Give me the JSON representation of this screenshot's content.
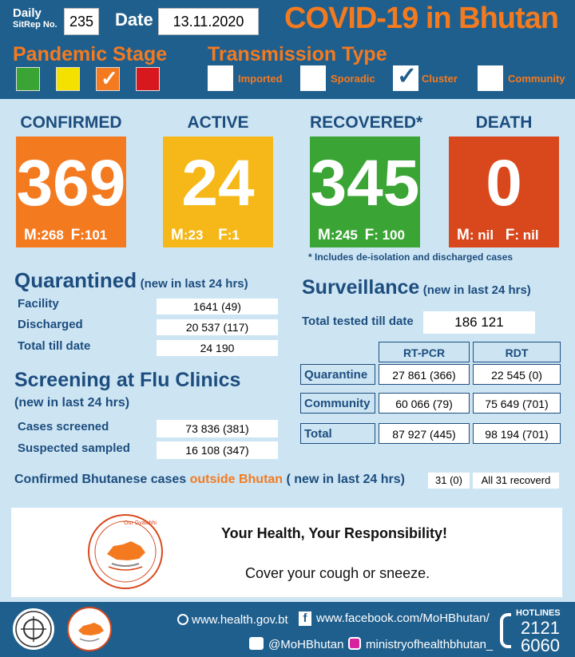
{
  "header": {
    "sitrep_label_line1": "Daily",
    "sitrep_label_line2": "SitRep No.",
    "sitrep_no": "235",
    "date_label": "Date",
    "date_value": "13.11.2020",
    "title": "COVID-19 in Bhutan",
    "pandemic_stage_label": "Pandemic Stage",
    "transmission_type_label": "Transmission Type",
    "stage_colors": [
      "#3aa535",
      "#f5e100",
      "#f47a20",
      "#d7191f"
    ],
    "stage_checked_index": 2,
    "transmission_types": [
      {
        "label": "Imported",
        "checked": false
      },
      {
        "label": "Sporadic",
        "checked": false
      },
      {
        "label": "Cluster",
        "checked": true
      },
      {
        "label": "Community",
        "checked": false
      }
    ],
    "check_mark": "✓"
  },
  "cards": [
    {
      "label": "CONFIRMED",
      "value": "369",
      "m_label": "M",
      "m_value": ":268",
      "f_label": "F",
      "f_value": ":101",
      "color": "#f47a20"
    },
    {
      "label": "ACTIVE",
      "value": "24",
      "m_label": "M",
      "m_value": ":23",
      "f_label": "F",
      "f_value": ":1",
      "color": "#f6b818"
    },
    {
      "label": "RECOVERED*",
      "value": "345",
      "m_label": "M",
      "m_value": ":245",
      "f_label": "F",
      "f_value": ": 100",
      "color": "#3aa535"
    },
    {
      "label": "DEATH",
      "value": "0",
      "m_label": "M",
      "m_value": ": nil",
      "f_label": "F",
      "f_value": ": nil",
      "color": "#d9481c"
    }
  ],
  "recovered_note": "* Includes de-isolation and discharged cases",
  "quarantined": {
    "title": "Quarantined",
    "subtitle": "(new in last 24 hrs)",
    "rows": [
      {
        "label": "Facility",
        "value": "1641 (49)"
      },
      {
        "label": "Discharged",
        "value": "20 537 (117)"
      },
      {
        "label": "Total till date",
        "value": "24 190"
      }
    ]
  },
  "screening": {
    "title": "Screening at Flu Clinics",
    "subtitle": "(new in last 24 hrs)",
    "rows": [
      {
        "label": "Cases screened",
        "value": "73 836 (381)"
      },
      {
        "label": "Suspected sampled",
        "value": "16 108 (347)"
      }
    ]
  },
  "surveillance": {
    "title": "Surveillance",
    "subtitle": "(new in last 24 hrs)",
    "total_tested_label": "Total tested till date",
    "total_tested_value": "186 121",
    "columns": [
      "RT-PCR",
      "RDT"
    ],
    "rows": [
      {
        "label": "Quarantine",
        "rtpcr": "27 861 (366)",
        "rdt": "22 545 (0)"
      },
      {
        "label": "Community",
        "rtpcr": "60 066 (79)",
        "rdt": "75 649 (701)"
      },
      {
        "label": "Total",
        "rtpcr": "87 927 (445)",
        "rdt": "98 194 (701)"
      }
    ]
  },
  "outside": {
    "label_part1": "Confirmed Bhutanese cases ",
    "label_highlight": "outside Bhutan",
    "label_part2": " ( new in last 24 hrs)",
    "value": "31 (0)",
    "note": "All 31 recoverd"
  },
  "banner": {
    "headline": "Your Health, Your Responsibility!",
    "message": "Cover your cough or sneeze.",
    "logo_text": "Our Gyalchhi"
  },
  "footer": {
    "website": "www.health.gov.bt",
    "facebook": "www.facebook.com/MoHBhutan/",
    "twitter": "@MoHBhutan",
    "instagram": "ministryofhealthbhutan_",
    "hotlines_label": "HOTLINES",
    "hotline1": "2121",
    "hotline2": "6060"
  }
}
